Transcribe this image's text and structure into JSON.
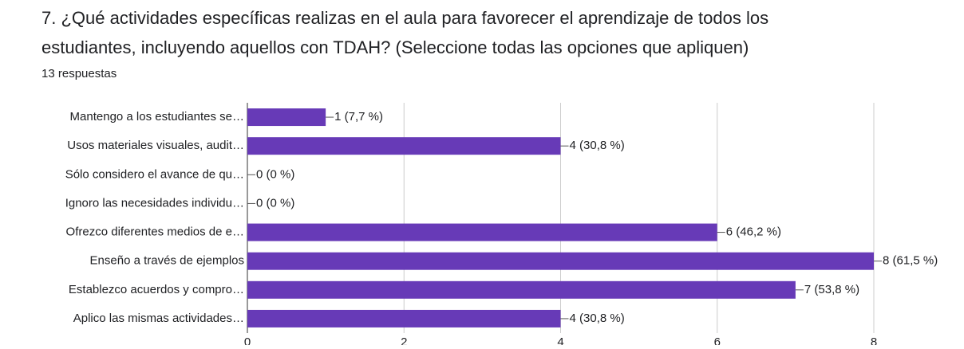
{
  "chart_data": {
    "type": "bar",
    "orientation": "horizontal",
    "title": [
      "7. ¿Qué actividades específicas realizas en el aula para favorecer el aprendizaje de todos los",
      "estudiantes, incluyendo aquellos con TDAH? (Seleccione todas las opciones que apliquen)"
    ],
    "subtitle": "13 respuestas",
    "categories": [
      "Mantengo a los estudiantes se…",
      "Usos materiales visuales, audit…",
      "Sólo considero el avance de qu…",
      "Ignoro las necesidades individu…",
      "Ofrezco diferentes medios de e…",
      "Enseño a través de ejemplos",
      "Establezco acuerdos y compro…",
      "Aplico las mismas actividades…"
    ],
    "values": [
      1,
      4,
      0,
      0,
      6,
      8,
      7,
      4
    ],
    "value_labels": [
      "1 (7,7 %)",
      "4 (30,8 %)",
      "0 (0 %)",
      "0 (0 %)",
      "6 (46,2 %)",
      "8 (61,5 %)",
      "7 (53,8 %)",
      "4 (30,8 %)"
    ],
    "color": "#673ab7",
    "xlim": [
      0,
      8
    ],
    "xticks": [
      0,
      2,
      4,
      6,
      8
    ],
    "grid": true
  }
}
